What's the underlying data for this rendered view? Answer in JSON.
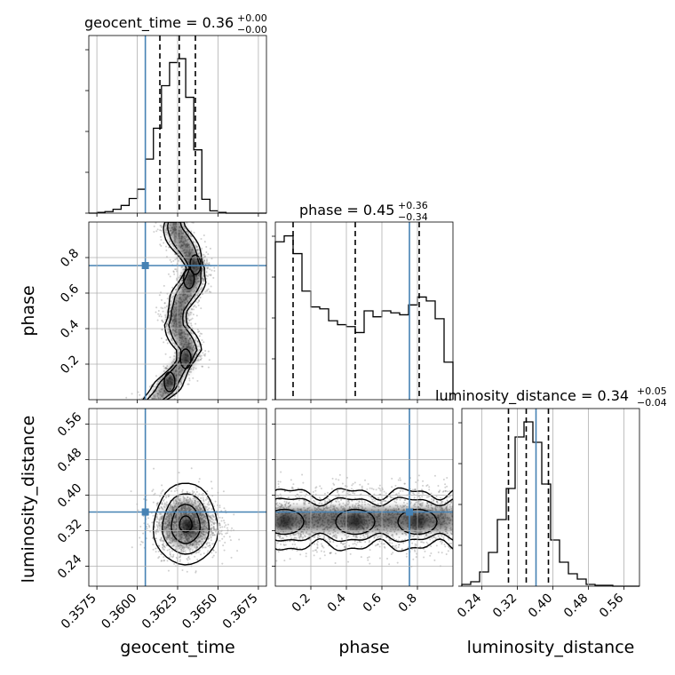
{
  "chart_data": {
    "type": "corner",
    "parameters": [
      {
        "name": "geocent_time",
        "xlabel": "geocent_time",
        "range": [
          0.357,
          0.368
        ],
        "ticks": [
          0.3575,
          0.36,
          0.3625,
          0.365,
          0.3675
        ],
        "tick_labels": [
          "0.3575",
          "0.3600",
          "0.3625",
          "0.3650",
          "0.3675"
        ],
        "truth": 0.3605,
        "quantiles": [
          0.3614,
          0.3626,
          0.3636
        ],
        "title": {
          "prefix": "geocent_time = 0.36",
          "sup": "+0.00",
          "sub": "−0.00"
        },
        "hist_bin_edges_start": 0.357,
        "hist_bin_width": 0.0005,
        "hist": [
          0,
          1,
          2,
          5,
          10,
          19,
          31,
          70,
          110,
          165,
          195,
          200,
          150,
          82,
          18,
          3,
          1,
          0,
          0,
          0,
          0,
          0
        ],
        "hist_ymax": 230
      },
      {
        "name": "phase",
        "ylabel": "phase",
        "xlabel": "phase",
        "range": [
          0.0,
          1.0
        ],
        "ticks": [
          0.2,
          0.4,
          0.6,
          0.8
        ],
        "tick_labels": [
          "0.2",
          "0.4",
          "0.6",
          "0.8"
        ],
        "truth": 0.755,
        "quantiles": [
          0.1,
          0.45,
          0.81
        ],
        "title": {
          "prefix": "phase = 0.45",
          "sup": "+0.36",
          "sub": "−0.34"
        },
        "hist_bin_edges_start": 0.0,
        "hist_bin_width": 0.05,
        "hist": [
          80,
          83,
          74,
          55,
          47,
          46,
          40,
          38,
          37,
          34,
          45,
          42,
          45,
          44,
          43,
          48,
          52,
          50,
          41,
          19
        ],
        "hist_ymax": 90
      },
      {
        "name": "luminosity_distance",
        "ylabel": "luminosity_distance",
        "xlabel": "luminosity_distance",
        "range": [
          0.195,
          0.595
        ],
        "ticks": [
          0.24,
          0.32,
          0.4,
          0.48,
          0.56
        ],
        "tick_labels": [
          "0.24",
          "0.32",
          "0.40",
          "0.48",
          "0.56"
        ],
        "truth": 0.362,
        "quantiles": [
          0.3,
          0.34,
          0.39
        ],
        "title": {
          "prefix": "luminosity_distance = 0.34",
          "sup": "+0.05",
          "sub": "−0.04"
        },
        "hist_bin_edges_start": 0.195,
        "hist_bin_width": 0.02,
        "hist": [
          2,
          5,
          16,
          38,
          75,
          110,
          168,
          185,
          162,
          115,
          52,
          27,
          14,
          8,
          2,
          1,
          1,
          0,
          0,
          0
        ],
        "hist_ymax": 200
      }
    ],
    "joint": [
      {
        "x": "geocent_time",
        "y": "phase",
        "density_ridge": [
          [
            0.3611,
            0.0
          ],
          [
            0.3617,
            0.05
          ],
          [
            0.362,
            0.1
          ],
          [
            0.3625,
            0.16
          ],
          [
            0.363,
            0.22
          ],
          [
            0.3632,
            0.28
          ],
          [
            0.3628,
            0.35
          ],
          [
            0.3624,
            0.42
          ],
          [
            0.3625,
            0.5
          ],
          [
            0.3629,
            0.58
          ],
          [
            0.3634,
            0.66
          ],
          [
            0.3636,
            0.74
          ],
          [
            0.3632,
            0.82
          ],
          [
            0.3627,
            0.9
          ],
          [
            0.3623,
            0.97
          ]
        ],
        "dense_spots": [
          [
            0.362,
            0.1
          ],
          [
            0.363,
            0.23
          ],
          [
            0.3636,
            0.76
          ],
          [
            0.3632,
            0.68
          ]
        ]
      },
      {
        "x": "geocent_time",
        "y": "luminosity_distance",
        "center": [
          0.363,
          0.335
        ],
        "spread": [
          0.001,
          0.035
        ]
      },
      {
        "x": "phase",
        "y": "luminosity_distance",
        "bands_y": 0.345,
        "blobs_x": [
          0.05,
          0.45,
          0.8
        ]
      }
    ],
    "colors": {
      "truth": "#4682b4",
      "hist": "#000000",
      "grid": "#b0b0b0",
      "quantile": "#000000"
    }
  }
}
